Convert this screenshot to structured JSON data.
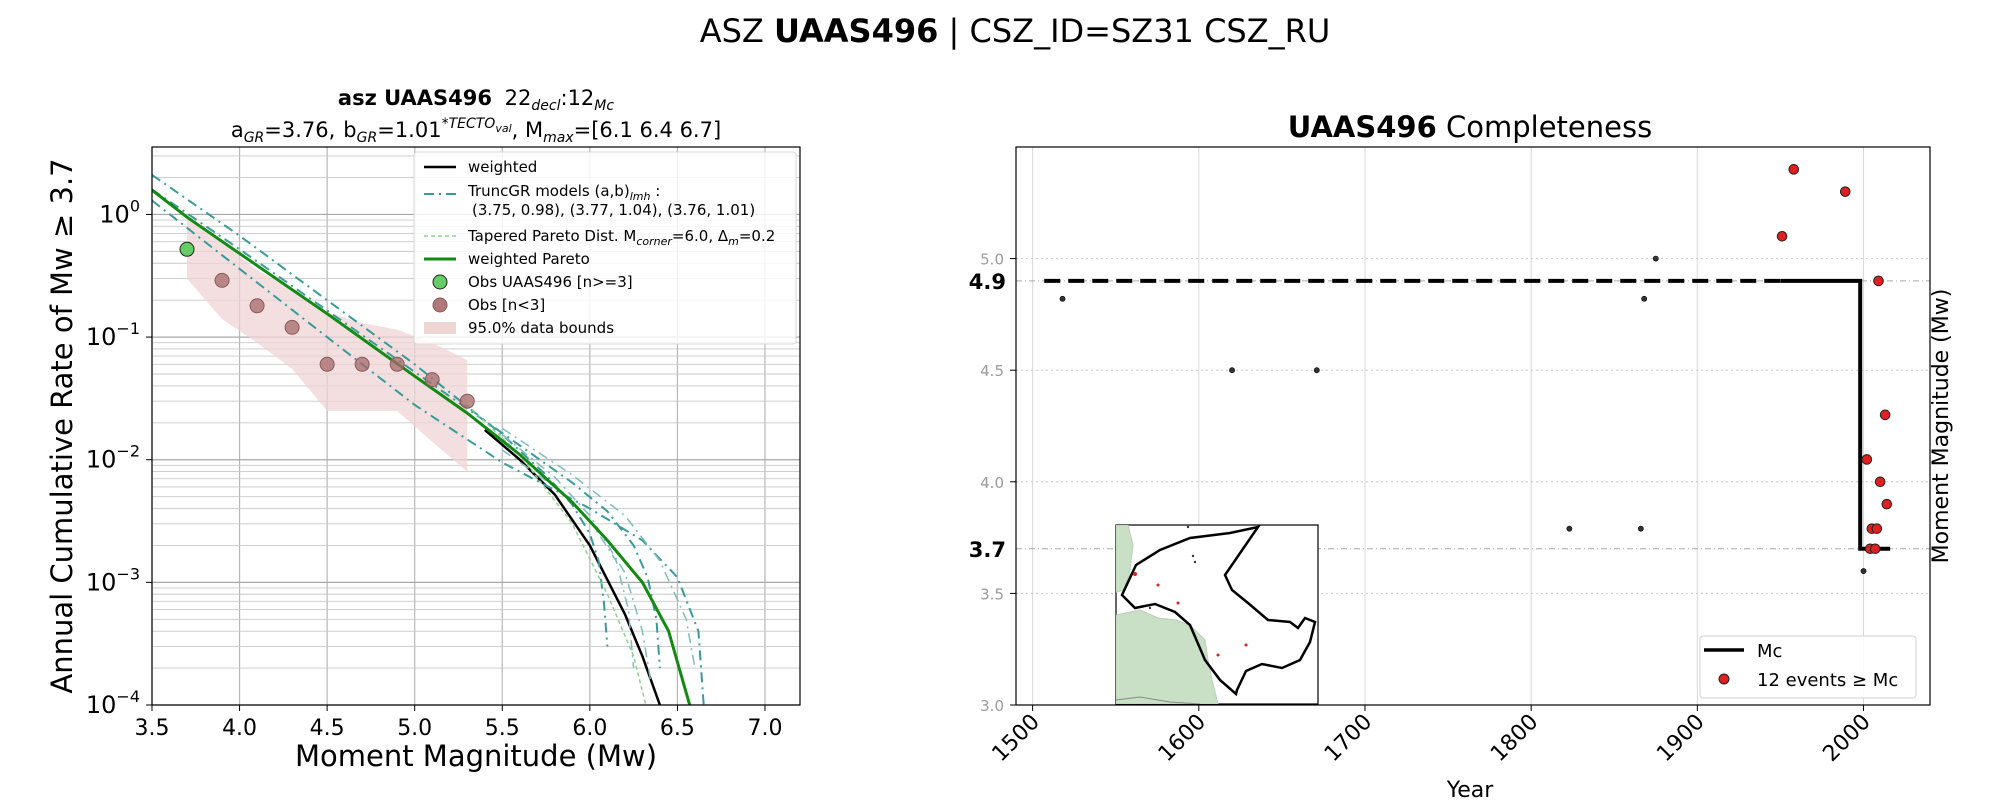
{
  "suptitle": {
    "prefix": "ASZ",
    "bold": "UAAS496",
    "suffix": "| CSZ_ID=SZ31 CSZ_RU"
  },
  "left_chart": {
    "type": "line",
    "title_line1": {
      "bold": "asz UAAS496",
      "rest": "22",
      "sub1": "decl",
      "mid": ":12",
      "sub2": "Mc"
    },
    "title_line2": {
      "a_label": "a",
      "a_sub": "GR",
      "a_val": "=3.76,",
      "b_label": "b",
      "b_sub": "GR",
      "b_val": "=1.01",
      "b_sup": "*TECTO",
      "b_sup_sub": "val",
      "m_label": ", M",
      "m_sub": "max",
      "m_val": "=[6.1 6.4 6.7]"
    },
    "xlabel": "Moment Magnitude (Mw)",
    "ylabel": "Annual Cumulative Rate of Mw ≥ 3.7",
    "xlim": [
      3.5,
      7.2
    ],
    "ylim_log10": [
      -4,
      0.55
    ],
    "xticks": [
      "3.5",
      "4.0",
      "4.5",
      "5.0",
      "5.5",
      "6.0",
      "6.5",
      "7.0"
    ],
    "yticks": [
      {
        "base": "10",
        "exp": "0"
      },
      {
        "base": "10",
        "exp": "−1"
      },
      {
        "base": "10",
        "exp": "−2"
      },
      {
        "base": "10",
        "exp": "−3"
      },
      {
        "base": "10",
        "exp": "−4"
      }
    ],
    "legend": [
      {
        "label": "weighted",
        "color": "#000000"
      },
      {
        "label": "TruncGR models (a,b)",
        "sub": "lmh",
        "label2": " :",
        "line2": "(3.75, 0.98), (3.77, 1.04), (3.76, 1.01)",
        "color": "#3a9a9a"
      },
      {
        "label": "Tapered Pareto Dist. M",
        "sub": "corner",
        "label2": "=6.0, Δ",
        "sub2": "m",
        "label3": "=0.2",
        "color": "#8fd08f"
      },
      {
        "label": "weighted Pareto",
        "color": "#138a13"
      },
      {
        "label": "Obs UAAS496 [n>=3]",
        "color": "#66cc66"
      },
      {
        "label": "Obs [n<3]",
        "color": "#b07878"
      },
      {
        "label": "95.0% data bounds",
        "color": "#efd4d4"
      }
    ],
    "obs_green": [
      {
        "m": 3.7,
        "rate": 0.52
      }
    ],
    "obs_brown": [
      {
        "m": 3.9,
        "rate": 0.29
      },
      {
        "m": 4.1,
        "rate": 0.18
      },
      {
        "m": 4.3,
        "rate": 0.12
      },
      {
        "m": 4.5,
        "rate": 0.06
      },
      {
        "m": 4.7,
        "rate": 0.06
      },
      {
        "m": 4.9,
        "rate": 0.06
      },
      {
        "m": 5.1,
        "rate": 0.045
      },
      {
        "m": 5.3,
        "rate": 0.03
      }
    ],
    "bounds_upper": [
      [
        3.7,
        1.0
      ],
      [
        3.9,
        0.6
      ],
      [
        4.1,
        0.35
      ],
      [
        4.3,
        0.25
      ],
      [
        4.5,
        0.16
      ],
      [
        4.7,
        0.13
      ],
      [
        4.9,
        0.115
      ],
      [
        5.1,
        0.09
      ],
      [
        5.3,
        0.065
      ]
    ],
    "bounds_lower": [
      [
        3.7,
        0.3
      ],
      [
        3.9,
        0.14
      ],
      [
        4.1,
        0.09
      ],
      [
        4.3,
        0.055
      ],
      [
        4.5,
        0.025
      ],
      [
        4.7,
        0.025
      ],
      [
        4.9,
        0.025
      ],
      [
        5.1,
        0.014
      ],
      [
        5.3,
        0.008
      ]
    ],
    "series": [
      {
        "kind": "weighted",
        "color": "#000000",
        "width": 2.5,
        "dash": "",
        "points": [
          [
            5.4,
            0.0175
          ],
          [
            5.6,
            0.01
          ],
          [
            5.8,
            0.0052
          ],
          [
            6.0,
            0.002
          ],
          [
            6.2,
            0.00055
          ],
          [
            6.3,
            0.00025
          ],
          [
            6.4,
            0.0001
          ]
        ]
      },
      {
        "kind": "truncgr",
        "color": "#3a9a9a",
        "width": 2,
        "dash": "10,5,2,5",
        "points": [
          [
            3.5,
            2.1
          ],
          [
            4.0,
            0.67
          ],
          [
            4.5,
            0.2
          ],
          [
            5.0,
            0.06
          ],
          [
            5.5,
            0.016
          ],
          [
            5.75,
            0.0075
          ],
          [
            5.9,
            0.0043
          ],
          [
            6.0,
            0.0025
          ],
          [
            6.05,
            0.0015
          ],
          [
            6.08,
            0.0007
          ],
          [
            6.1,
            0.0003
          ]
        ]
      },
      {
        "kind": "truncgr",
        "color": "#3a9a9a",
        "width": 2,
        "dash": "10,5,2,5",
        "points": [
          [
            3.5,
            1.6
          ],
          [
            4.0,
            0.52
          ],
          [
            4.5,
            0.165
          ],
          [
            5.0,
            0.052
          ],
          [
            5.5,
            0.0165
          ],
          [
            5.9,
            0.0065
          ],
          [
            6.1,
            0.0038
          ],
          [
            6.25,
            0.002
          ],
          [
            6.33,
            0.0011
          ],
          [
            6.38,
            0.0005
          ],
          [
            6.4,
            0.0002
          ]
        ]
      },
      {
        "kind": "truncgr",
        "color": "#3a9a9a",
        "width": 2,
        "dash": "10,5,2,5",
        "points": [
          [
            3.5,
            1.3
          ],
          [
            4.0,
            0.36
          ],
          [
            4.5,
            0.1
          ],
          [
            5.0,
            0.028
          ],
          [
            5.5,
            0.0095
          ],
          [
            6.0,
            0.004
          ],
          [
            6.3,
            0.0022
          ],
          [
            6.5,
            0.0011
          ],
          [
            6.62,
            0.0004
          ],
          [
            6.65,
            0.0001
          ]
        ]
      },
      {
        "kind": "truncgr_light",
        "color": "#7fbcbc",
        "width": 1.5,
        "dash": "10,5,2,5",
        "points": [
          [
            5.5,
            0.016
          ],
          [
            5.8,
            0.0072
          ],
          [
            6.0,
            0.0035
          ],
          [
            6.2,
            0.0012
          ],
          [
            6.3,
            0.0004
          ],
          [
            6.35,
            0.00015
          ]
        ]
      },
      {
        "kind": "truncgr_light",
        "color": "#7fbcbc",
        "width": 1.5,
        "dash": "10,5,2,5",
        "points": [
          [
            5.5,
            0.018
          ],
          [
            5.9,
            0.0075
          ],
          [
            6.2,
            0.0035
          ],
          [
            6.4,
            0.0015
          ],
          [
            6.55,
            0.0005
          ],
          [
            6.6,
            0.0002
          ]
        ]
      },
      {
        "kind": "truncgr_light",
        "color": "#7fbcbc",
        "width": 1.5,
        "dash": "10,5,2,5",
        "points": [
          [
            5.5,
            0.012
          ],
          [
            5.8,
            0.006
          ],
          [
            6.0,
            0.0032
          ],
          [
            6.15,
            0.0015
          ],
          [
            6.22,
            0.0006
          ],
          [
            6.25,
            0.0002
          ]
        ]
      },
      {
        "kind": "tapered",
        "color": "#8fd08f",
        "width": 1.5,
        "dash": "4,3",
        "points": [
          [
            5.3,
            0.028
          ],
          [
            5.6,
            0.011
          ],
          [
            5.9,
            0.003
          ],
          [
            6.1,
            0.0008
          ],
          [
            6.25,
            0.00025
          ],
          [
            6.32,
            0.0001
          ]
        ]
      },
      {
        "kind": "weighted_pareto",
        "color": "#138a13",
        "width": 3,
        "dash": "",
        "points": [
          [
            3.5,
            1.58
          ],
          [
            3.7,
            0.95
          ],
          [
            4.0,
            0.48
          ],
          [
            4.5,
            0.155
          ],
          [
            5.0,
            0.048
          ],
          [
            5.3,
            0.024
          ],
          [
            5.6,
            0.011
          ],
          [
            5.9,
            0.0045
          ],
          [
            6.1,
            0.0022
          ],
          [
            6.3,
            0.001
          ],
          [
            6.45,
            0.0004
          ],
          [
            6.57,
            0.0001
          ]
        ]
      }
    ]
  },
  "right_chart": {
    "type": "scatter",
    "title": {
      "bold": "UAAS496",
      "rest": "Completeness"
    },
    "xlabel": "Year",
    "ylabel": "Moment Magnitude (Mw)",
    "xlim": [
      1490,
      2040
    ],
    "ylim": [
      3.0,
      5.5
    ],
    "xticks": [
      "1500",
      "1600",
      "1700",
      "1800",
      "1900",
      "2000"
    ],
    "yticks": [
      "3.0",
      "3.5",
      "4.0",
      "4.5",
      "5.0"
    ],
    "mc_labels": [
      {
        "value": 3.7,
        "label": "3.7"
      },
      {
        "value": 4.9,
        "label": "4.9"
      }
    ],
    "mc_step": {
      "year_change": 1998,
      "mc_before": 4.9,
      "mc_after": 3.7,
      "start": 1507,
      "end": 2016
    },
    "legend": [
      {
        "label": "Mc",
        "color": "#000000"
      },
      {
        "label": "12 events ≥ Mc",
        "color": "#e02020"
      }
    ],
    "events_red": [
      [
        1958,
        5.4
      ],
      [
        1989,
        5.3
      ],
      [
        1951,
        5.1
      ],
      [
        2009,
        4.9
      ],
      [
        2013,
        4.3
      ],
      [
        2002,
        4.1
      ],
      [
        2010,
        4.0
      ],
      [
        2014,
        3.9
      ],
      [
        2005,
        3.79
      ],
      [
        2008,
        3.79
      ],
      [
        2004,
        3.7
      ],
      [
        2007,
        3.7
      ]
    ],
    "events_black": [
      [
        1518,
        4.82
      ],
      [
        1620,
        4.5
      ],
      [
        1671,
        4.5
      ],
      [
        1875,
        5.0
      ],
      [
        1868,
        4.82
      ],
      [
        1823,
        3.79
      ],
      [
        1866,
        3.79
      ],
      [
        1597,
        3.79
      ],
      [
        2000,
        3.6
      ]
    ],
    "inset_map": {
      "land_color": "#c9dfc6",
      "outline_color": "#000000"
    }
  }
}
